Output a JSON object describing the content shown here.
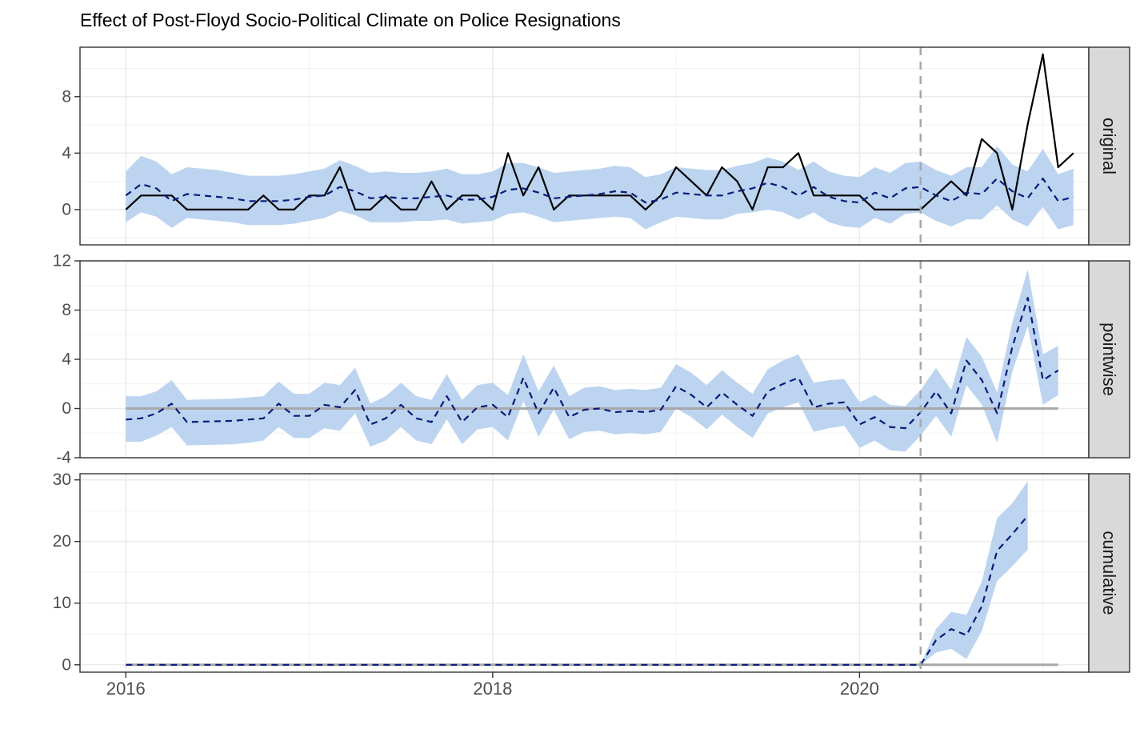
{
  "chart_data": {
    "type": "line",
    "title": "Effect of Post-Floyd Socio-Political Climate on Police Resignations",
    "xlabel": "",
    "ylabel": "",
    "grid": true,
    "legend": "none",
    "x_ticks": [
      "2016",
      "2018",
      "2020"
    ],
    "x_tick_values": [
      2016,
      2018,
      2020
    ],
    "xlim": [
      2015.75,
      2021.25
    ],
    "intervention": 2020.333,
    "colors": {
      "band": "#bcd4f0",
      "observed": "#000000",
      "predicted": "#0a1a78",
      "zero_line": "#a8a8a8",
      "intervention_line": "#a8a8a8",
      "strip_fill": "#d9d9d9"
    },
    "x_start": 2016.0,
    "x_step": 0.08333,
    "panels": [
      {
        "name": "original",
        "label": "original",
        "ylim": [
          -2.5,
          11.5
        ],
        "y_ticks": [
          0,
          4,
          8
        ],
        "y_tick_labels": [
          "0",
          "4",
          "8"
        ],
        "series": [
          {
            "role": "observed",
            "values": [
              0,
              1,
              1,
              1,
              0,
              0,
              0,
              0,
              0,
              1,
              0,
              0,
              1,
              1,
              3,
              0,
              0,
              1,
              0,
              0,
              2,
              0,
              1,
              1,
              0,
              4,
              1,
              3,
              0,
              1,
              1,
              1,
              1,
              1,
              0,
              1,
              3,
              2,
              1,
              3,
              2,
              0,
              3,
              3,
              4,
              1,
              1,
              1,
              1,
              0,
              0,
              0,
              0,
              1,
              2,
              1,
              5,
              4,
              0,
              6,
              11,
              3,
              4
            ]
          },
          {
            "role": "predicted",
            "values": [
              1.0,
              1.8,
              1.5,
              0.6,
              1.1,
              1.0,
              0.9,
              0.8,
              0.6,
              0.6,
              0.6,
              0.7,
              0.9,
              1.0,
              1.6,
              1.3,
              0.8,
              0.9,
              0.8,
              0.8,
              0.9,
              1.0,
              0.7,
              0.7,
              0.9,
              1.4,
              1.5,
              1.2,
              0.8,
              0.9,
              1.0,
              1.1,
              1.3,
              1.2,
              0.5,
              0.7,
              1.2,
              1.1,
              1.0,
              1.0,
              1.3,
              1.5,
              1.9,
              1.6,
              1.0,
              1.6,
              0.9,
              0.6,
              0.5,
              1.2,
              0.8,
              1.5,
              1.6,
              1.0,
              0.6,
              1.2,
              1.1,
              2.2,
              1.3,
              0.8,
              2.2,
              0.6,
              0.9
            ]
          },
          {
            "role": "lower",
            "values": [
              -0.9,
              -0.2,
              -0.5,
              -1.3,
              -0.6,
              -0.7,
              -0.8,
              -0.9,
              -1.1,
              -1.1,
              -1.1,
              -1.0,
              -0.8,
              -0.6,
              -0.1,
              -0.4,
              -0.9,
              -0.9,
              -0.9,
              -0.8,
              -0.8,
              -0.7,
              -1.0,
              -0.9,
              -0.8,
              -0.3,
              -0.2,
              -0.5,
              -0.9,
              -0.8,
              -0.7,
              -0.6,
              -0.5,
              -0.6,
              -1.4,
              -0.9,
              -0.5,
              -0.6,
              -0.7,
              -0.7,
              -0.3,
              -0.2,
              0.0,
              -0.2,
              -0.7,
              -0.2,
              -0.9,
              -1.2,
              -1.3,
              -0.6,
              -1.0,
              -0.3,
              -0.2,
              -0.8,
              -1.2,
              -0.7,
              -0.7,
              0.3,
              -0.7,
              -1.2,
              0.2,
              -1.4,
              -1.1
            ]
          },
          {
            "role": "upper",
            "values": [
              2.7,
              3.8,
              3.4,
              2.5,
              3.0,
              2.9,
              2.8,
              2.6,
              2.4,
              2.4,
              2.4,
              2.5,
              2.7,
              2.9,
              3.5,
              3.1,
              2.6,
              2.7,
              2.6,
              2.6,
              2.7,
              2.9,
              2.5,
              2.5,
              2.7,
              3.3,
              3.3,
              3.0,
              2.6,
              2.7,
              2.8,
              2.9,
              3.1,
              3.0,
              2.3,
              2.5,
              3.0,
              2.9,
              2.8,
              2.8,
              3.1,
              3.3,
              3.7,
              3.4,
              2.8,
              3.4,
              2.7,
              2.4,
              2.3,
              3.0,
              2.6,
              3.3,
              3.4,
              2.8,
              2.4,
              3.0,
              3.0,
              4.5,
              3.2,
              2.7,
              4.3,
              2.5,
              2.9
            ]
          }
        ]
      },
      {
        "name": "pointwise",
        "label": "pointwise",
        "ylim": [
          -4.0,
          12.0
        ],
        "y_ticks": [
          -4,
          0,
          4,
          8,
          12
        ],
        "y_tick_labels": [
          "-4",
          "0",
          "4",
          "8",
          "12"
        ],
        "series": [
          {
            "role": "predicted",
            "values": [
              -0.9,
              -0.8,
              -0.4,
              0.4,
              -1.1,
              -1.0,
              -0.9,
              -0.8,
              0.4,
              -0.6,
              -0.6,
              0.3,
              0.1,
              1.5,
              -1.3,
              -0.8,
              0.3,
              -0.8,
              -1.1,
              1.0,
              -1.1,
              0.1,
              0.3,
              -0.7,
              2.5,
              -0.4,
              1.7,
              -0.7,
              -0.1,
              0.0,
              -0.3,
              -0.2,
              -0.3,
              -0.1,
              1.8,
              1.1,
              0.1,
              1.3,
              0.3,
              -0.6,
              1.4,
              2.0,
              2.5,
              0.1,
              0.4,
              0.5,
              -1.3,
              -0.7,
              -1.5,
              -1.6,
              -0.3,
              1.4,
              -0.4,
              3.9,
              2.3,
              -0.4,
              5.0,
              9.0,
              2.3,
              3.1
            ]
          },
          {
            "role": "lower",
            "values": [
              -2.7,
              -2.7,
              -2.2,
              -1.5,
              -3.0,
              -2.9,
              -2.8,
              -2.6,
              -1.5,
              -2.4,
              -2.4,
              -1.6,
              -1.8,
              -0.4,
              -3.1,
              -2.6,
              -1.5,
              -2.6,
              -2.9,
              -0.9,
              -2.9,
              -1.7,
              -1.5,
              -2.6,
              0.6,
              -2.3,
              -0.1,
              -2.5,
              -1.9,
              -1.8,
              -2.1,
              -2.0,
              -2.1,
              -1.9,
              0.0,
              -0.7,
              -1.7,
              -0.5,
              -1.5,
              -2.4,
              -0.4,
              0.1,
              0.5,
              -1.9,
              -1.6,
              -1.4,
              -3.2,
              -2.6,
              -3.4,
              -3.5,
              -2.2,
              -0.6,
              -2.3,
              1.9,
              0.3,
              -2.8,
              3.0,
              6.7,
              0.3,
              1.1
            ]
          },
          {
            "role": "upper",
            "values": [
              1.0,
              1.0,
              1.4,
              2.3,
              0.7,
              0.8,
              0.9,
              1.0,
              2.2,
              1.2,
              1.2,
              2.1,
              1.9,
              3.3,
              0.4,
              1.0,
              2.1,
              1.0,
              0.7,
              2.8,
              0.7,
              1.9,
              2.1,
              1.1,
              4.4,
              1.4,
              3.5,
              1.0,
              1.7,
              1.8,
              1.5,
              1.6,
              1.5,
              1.7,
              3.6,
              2.9,
              1.9,
              3.1,
              2.1,
              1.2,
              3.2,
              3.9,
              4.4,
              2.1,
              2.3,
              2.4,
              0.5,
              1.1,
              0.3,
              0.2,
              1.5,
              3.3,
              1.5,
              5.8,
              4.2,
              1.3,
              7.0,
              11.3,
              4.4,
              5.1
            ]
          }
        ],
        "x_points": [
          2016.0,
          2016.083,
          2016.167,
          2016.25,
          2016.333,
          2016.583,
          2016.667,
          2016.75,
          2016.833,
          2016.917,
          2017.0,
          2017.083,
          2017.167,
          2017.25,
          2017.333,
          2017.417,
          2017.5,
          2017.583,
          2017.667,
          2017.75,
          2017.833,
          2017.917,
          2018.0,
          2018.083,
          2018.167,
          2018.25,
          2018.333,
          2018.417,
          2018.5,
          2018.583,
          2018.667,
          2018.75,
          2018.833,
          2018.917,
          2019.0,
          2019.083,
          2019.167,
          2019.25,
          2019.333,
          2019.417,
          2019.5,
          2019.583,
          2019.667,
          2019.75,
          2019.833,
          2019.917,
          2020.0,
          2020.083,
          2020.167,
          2020.25,
          2020.333,
          2020.417,
          2020.5,
          2020.583,
          2020.667,
          2020.75,
          2020.833,
          2020.917,
          2021.0,
          2021.083
        ]
      },
      {
        "name": "cumulative",
        "label": "cumulative",
        "ylim": [
          -1.2,
          31.0
        ],
        "y_ticks": [
          0,
          10,
          20,
          30
        ],
        "y_tick_labels": [
          "0",
          "10",
          "20",
          "30"
        ],
        "series": [
          {
            "role": "predicted",
            "x": [
              2016.0,
              2020.333,
              2020.417,
              2020.5,
              2020.583,
              2020.667,
              2020.75,
              2020.833,
              2020.917
            ],
            "values": [
              0,
              0,
              4.0,
              5.8,
              4.8,
              9.5,
              18.5,
              21.2,
              24.2
            ]
          },
          {
            "role": "lower",
            "x": [
              2016.0,
              2020.333,
              2020.417,
              2020.5,
              2020.583,
              2020.667,
              2020.75,
              2020.833,
              2020.917
            ],
            "values": [
              0,
              0,
              2.0,
              2.6,
              0.9,
              5.5,
              13.6,
              16.0,
              18.7
            ]
          },
          {
            "role": "upper",
            "x": [
              2016.0,
              2020.333,
              2020.417,
              2020.5,
              2020.583,
              2020.667,
              2020.75,
              2020.833,
              2020.917
            ],
            "values": [
              0,
              0,
              5.8,
              8.6,
              8.1,
              13.5,
              23.8,
              26.2,
              29.8
            ]
          }
        ]
      }
    ]
  }
}
